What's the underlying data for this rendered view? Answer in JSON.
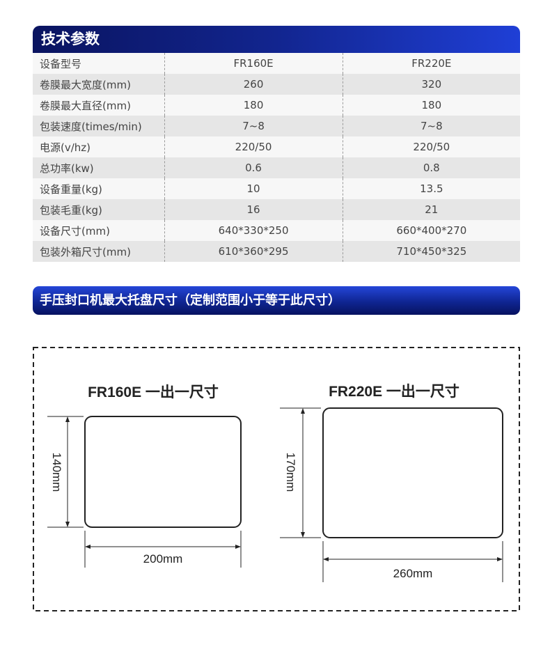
{
  "spec_section": {
    "title": "技术参数",
    "rows": [
      {
        "label": "设备型号",
        "fr160e": "FR160E",
        "fr220e": "FR220E"
      },
      {
        "label": "卷膜最大宽度(mm)",
        "fr160e": "260",
        "fr220e": "320"
      },
      {
        "label": "卷膜最大直径(mm)",
        "fr160e": "180",
        "fr220e": "180"
      },
      {
        "label": "包装速度(times/min)",
        "fr160e": "7~8",
        "fr220e": "7~8"
      },
      {
        "label": "电源(v/hz)",
        "fr160e": "220/50",
        "fr220e": "220/50"
      },
      {
        "label": "总功率(kw)",
        "fr160e": "0.6",
        "fr220e": "0.8"
      },
      {
        "label": "设备重量(kg)",
        "fr160e": "10",
        "fr220e": "13.5"
      },
      {
        "label": "包装毛重(kg)",
        "fr160e": "16",
        "fr220e": "21"
      },
      {
        "label": "设备尺寸(mm)",
        "fr160e": "640*330*250",
        "fr220e": "660*400*270"
      },
      {
        "label": "包装外箱尺寸(mm)",
        "fr160e": "610*360*295",
        "fr220e": "710*450*325"
      }
    ]
  },
  "tray_section": {
    "title": "手压封口机最大托盘尺寸（定制范围小于等于此尺寸）",
    "diagrams": [
      {
        "title": "FR160E 一出一尺寸",
        "height": "140mm",
        "width": "200mm"
      },
      {
        "title": "FR220E 一出一尺寸",
        "height": "170mm",
        "width": "260mm"
      }
    ]
  },
  "colors": {
    "header_dark": "#0a1460",
    "header_bright": "#1f3fd6"
  }
}
